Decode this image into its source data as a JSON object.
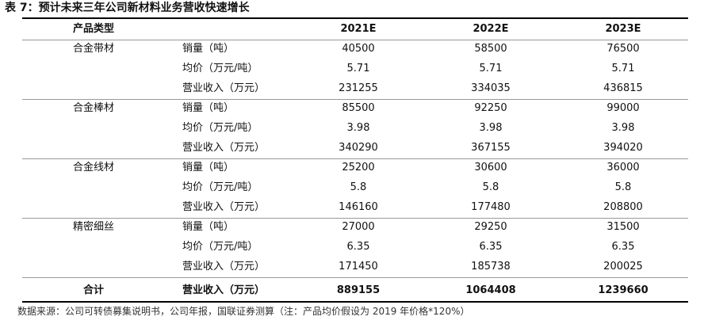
{
  "title": "表 7：预计未来三年公司新材料业务营收快速增长",
  "header": [
    "产品类型",
    "2021E",
    "2022E",
    "2023E"
  ],
  "groups": [
    {
      "name": "合金带材",
      "rows": [
        {
          "label": "销量（吨）",
          "values": [
            40500,
            58500,
            76500
          ]
        },
        {
          "label": "均价（万元/吨）",
          "values": [
            5.71,
            5.71,
            5.71
          ]
        },
        {
          "label": "营业收入（万元）",
          "values": [
            231255,
            334035,
            436815
          ]
        }
      ]
    },
    {
      "name": "合金棒材",
      "rows": [
        {
          "label": "销量（吨）",
          "values": [
            85500,
            92250,
            99000
          ]
        },
        {
          "label": "均价（万元/吨）",
          "values": [
            3.98,
            3.98,
            3.98
          ]
        },
        {
          "label": "营业收入（万元）",
          "values": [
            340290,
            367155,
            394020
          ]
        }
      ]
    },
    {
      "name": "合金线材",
      "rows": [
        {
          "label": "销量（吨）",
          "values": [
            25200,
            30600,
            36000
          ]
        },
        {
          "label": "均价（万元/吨）",
          "values": [
            5.8,
            5.8,
            5.8
          ]
        },
        {
          "label": "营业收入（万元）",
          "values": [
            146160,
            177480,
            208800
          ]
        }
      ]
    },
    {
      "name": "精密细丝",
      "rows": [
        {
          "label": "销量（吨）",
          "values": [
            27000,
            29250,
            31500
          ]
        },
        {
          "label": "均价（万元/吨）",
          "values": [
            6.35,
            6.35,
            6.35
          ]
        },
        {
          "label": "营业收入（万元）",
          "values": [
            171450,
            185738,
            200025
          ]
        }
      ]
    }
  ],
  "total": {
    "name": "合计",
    "label": "营业收入（万元）",
    "values": [
      889155,
      1064408,
      1239660
    ]
  },
  "source": "数据来源：公司可转债募集说明书，公司年报，国联证券测算（注：产品均价假设为 2019 年价格*120%）"
}
